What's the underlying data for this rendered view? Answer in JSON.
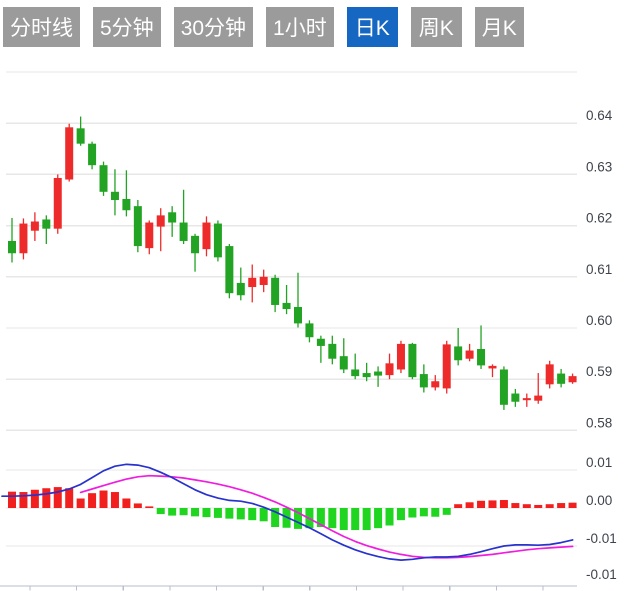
{
  "tabs": {
    "items": [
      {
        "label": "分时线",
        "active": false
      },
      {
        "label": "5分钟",
        "active": false
      },
      {
        "label": "30分钟",
        "active": false
      },
      {
        "label": "1小时",
        "active": false
      },
      {
        "label": "日K",
        "active": true
      },
      {
        "label": "周K",
        "active": false
      },
      {
        "label": "月K",
        "active": false
      }
    ],
    "active_color": "#1667c1",
    "inactive_color": "#9b9b9b",
    "text_color": "#ffffff"
  },
  "price_axis": {
    "labels": [
      "0.64",
      "0.63",
      "0.62",
      "0.61",
      "0.60",
      "0.59",
      "0.58"
    ]
  },
  "macd_axis": {
    "labels": [
      "0.01",
      "0.00",
      "-0.01",
      "-0.01"
    ]
  },
  "chart_data": {
    "type": "candlestick",
    "panes": [
      {
        "type": "candlestick",
        "ylim": [
          0.576,
          0.652
        ],
        "grid": true,
        "gridline_values": [
          0.65,
          0.64,
          0.63,
          0.62,
          0.61,
          0.6,
          0.59,
          0.58
        ],
        "up_means": "red (Chinese convention: red = close above open)",
        "candles_ohlc": [
          [
            0.617,
            0.6215,
            0.6128,
            0.6146
          ],
          [
            0.6146,
            0.6214,
            0.6134,
            0.6204
          ],
          [
            0.619,
            0.6226,
            0.617,
            0.6208
          ],
          [
            0.6212,
            0.622,
            0.6164,
            0.6194
          ],
          [
            0.6194,
            0.63,
            0.6184,
            0.6293
          ],
          [
            0.629,
            0.6399,
            0.6286,
            0.6392
          ],
          [
            0.639,
            0.6413,
            0.6356,
            0.636
          ],
          [
            0.636,
            0.6364,
            0.631,
            0.6318
          ],
          [
            0.6318,
            0.6325,
            0.6258,
            0.6266
          ],
          [
            0.6266,
            0.631,
            0.622,
            0.625
          ],
          [
            0.6252,
            0.6308,
            0.6218,
            0.623
          ],
          [
            0.6238,
            0.625,
            0.6148,
            0.616
          ],
          [
            0.6156,
            0.621,
            0.6144,
            0.6206
          ],
          [
            0.6198,
            0.6234,
            0.615,
            0.622
          ],
          [
            0.6226,
            0.6238,
            0.6178,
            0.6206
          ],
          [
            0.6206,
            0.627,
            0.6164,
            0.617
          ],
          [
            0.618,
            0.6184,
            0.611,
            0.6146
          ],
          [
            0.6154,
            0.6218,
            0.614,
            0.6206
          ],
          [
            0.6204,
            0.621,
            0.613,
            0.6138
          ],
          [
            0.616,
            0.6164,
            0.6058,
            0.6068
          ],
          [
            0.6088,
            0.6118,
            0.6054,
            0.6064
          ],
          [
            0.608,
            0.6124,
            0.605,
            0.6098
          ],
          [
            0.6084,
            0.6114,
            0.607,
            0.61
          ],
          [
            0.6098,
            0.6104,
            0.6031,
            0.6045
          ],
          [
            0.6049,
            0.6084,
            0.6027,
            0.6037
          ],
          [
            0.6041,
            0.6108,
            0.6001,
            0.6009
          ],
          [
            0.6009,
            0.6015,
            0.5972,
            0.5982
          ],
          [
            0.5979,
            0.5985,
            0.5932,
            0.5965
          ],
          [
            0.5969,
            0.5985,
            0.5929,
            0.594
          ],
          [
            0.5945,
            0.598,
            0.5912,
            0.5919
          ],
          [
            0.5919,
            0.595,
            0.59,
            0.5906
          ],
          [
            0.5912,
            0.5932,
            0.5896,
            0.5904
          ],
          [
            0.5915,
            0.5925,
            0.5885,
            0.5907
          ],
          [
            0.5908,
            0.595,
            0.59,
            0.5931
          ],
          [
            0.5919,
            0.5975,
            0.5912,
            0.5969
          ],
          [
            0.5969,
            0.5971,
            0.59,
            0.5904
          ],
          [
            0.591,
            0.5929,
            0.5874,
            0.5884
          ],
          [
            0.5884,
            0.5908,
            0.5878,
            0.5896
          ],
          [
            0.5882,
            0.5975,
            0.5872,
            0.5968
          ],
          [
            0.5964,
            0.6,
            0.5927,
            0.5937
          ],
          [
            0.594,
            0.5969,
            0.5935,
            0.5956
          ],
          [
            0.5959,
            0.6005,
            0.592,
            0.5927
          ],
          [
            0.5921,
            0.5929,
            0.5904,
            0.5926
          ],
          [
            0.5919,
            0.5925,
            0.584,
            0.585
          ],
          [
            0.5872,
            0.5881,
            0.5846,
            0.5856
          ],
          [
            0.5859,
            0.5872,
            0.5846,
            0.5863
          ],
          [
            0.5858,
            0.5912,
            0.5852,
            0.5868
          ],
          [
            0.589,
            0.5936,
            0.5882,
            0.5929
          ],
          [
            0.5911,
            0.592,
            0.5884,
            0.5891
          ],
          [
            0.5894,
            0.5911,
            0.5891,
            0.5906
          ]
        ]
      },
      {
        "type": "macd",
        "ylim": [
          -0.021,
          0.013
        ],
        "grid": true,
        "gridline_values": [
          0.01,
          0.0,
          -0.01
        ],
        "histogram": [
          0.0043,
          0.0042,
          0.0048,
          0.0052,
          0.0055,
          0.0052,
          0.0025,
          0.0039,
          0.0046,
          0.0042,
          0.0025,
          0.0012,
          0.0002,
          -0.0016,
          -0.002,
          -0.0019,
          -0.0022,
          -0.0024,
          -0.0026,
          -0.0028,
          -0.003,
          -0.0032,
          -0.0035,
          -0.005,
          -0.0052,
          -0.0055,
          -0.0053,
          -0.005,
          -0.0053,
          -0.0058,
          -0.0058,
          -0.0058,
          -0.0053,
          -0.0046,
          -0.0032,
          -0.0025,
          -0.0022,
          -0.0023,
          -0.0018,
          0.001,
          0.0015,
          0.0019,
          0.002,
          0.0021,
          0.0013,
          0.001,
          0.0008,
          0.001,
          0.0013,
          0.0014
        ],
        "dif_line": [
          0.0031,
          0.0032,
          0.0034,
          0.0037,
          0.0042,
          0.005,
          0.0062,
          0.008,
          0.0098,
          0.011,
          0.0115,
          0.0113,
          0.0106,
          0.0094,
          0.008,
          0.0064,
          0.0048,
          0.0035,
          0.0026,
          0.002,
          0.0018,
          0.0012,
          0.0002,
          -0.001,
          -0.0024,
          -0.0038,
          -0.0052,
          -0.0068,
          -0.0084,
          -0.0098,
          -0.011,
          -0.012,
          -0.0128,
          -0.0134,
          -0.0137,
          -0.0135,
          -0.0131,
          -0.0129,
          -0.0129,
          -0.0127,
          -0.0122,
          -0.0115,
          -0.0107,
          -0.01,
          -0.0097,
          -0.0097,
          -0.0098,
          -0.0096,
          -0.0091,
          -0.0084
        ],
        "dea_line": [
          null,
          null,
          null,
          null,
          null,
          null,
          0.0041,
          0.005,
          0.0059,
          0.0068,
          0.0076,
          0.0082,
          0.0085,
          0.0084,
          0.0082,
          0.0079,
          0.0074,
          0.0069,
          0.0063,
          0.0056,
          0.0048,
          0.0039,
          0.0028,
          0.0016,
          0.0002,
          -0.0012,
          -0.0028,
          -0.0044,
          -0.006,
          -0.0075,
          -0.0088,
          -0.0099,
          -0.0108,
          -0.0116,
          -0.0122,
          -0.0127,
          -0.013,
          -0.0131,
          -0.0131,
          -0.013,
          -0.0128,
          -0.0125,
          -0.0122,
          -0.0118,
          -0.0114,
          -0.011,
          -0.0107,
          -0.0105,
          -0.0103,
          -0.0101
        ]
      }
    ],
    "colors": {
      "up": "#ee2b2b",
      "down": "#23a323",
      "hist_positive": "#f21f1f",
      "hist_negative": "#1fd51f",
      "dif": "#2832cc",
      "dea": "#f01ddf",
      "grid": "#e7e7e7",
      "axis": "#b9bdcd",
      "label": "#3e434c"
    }
  }
}
